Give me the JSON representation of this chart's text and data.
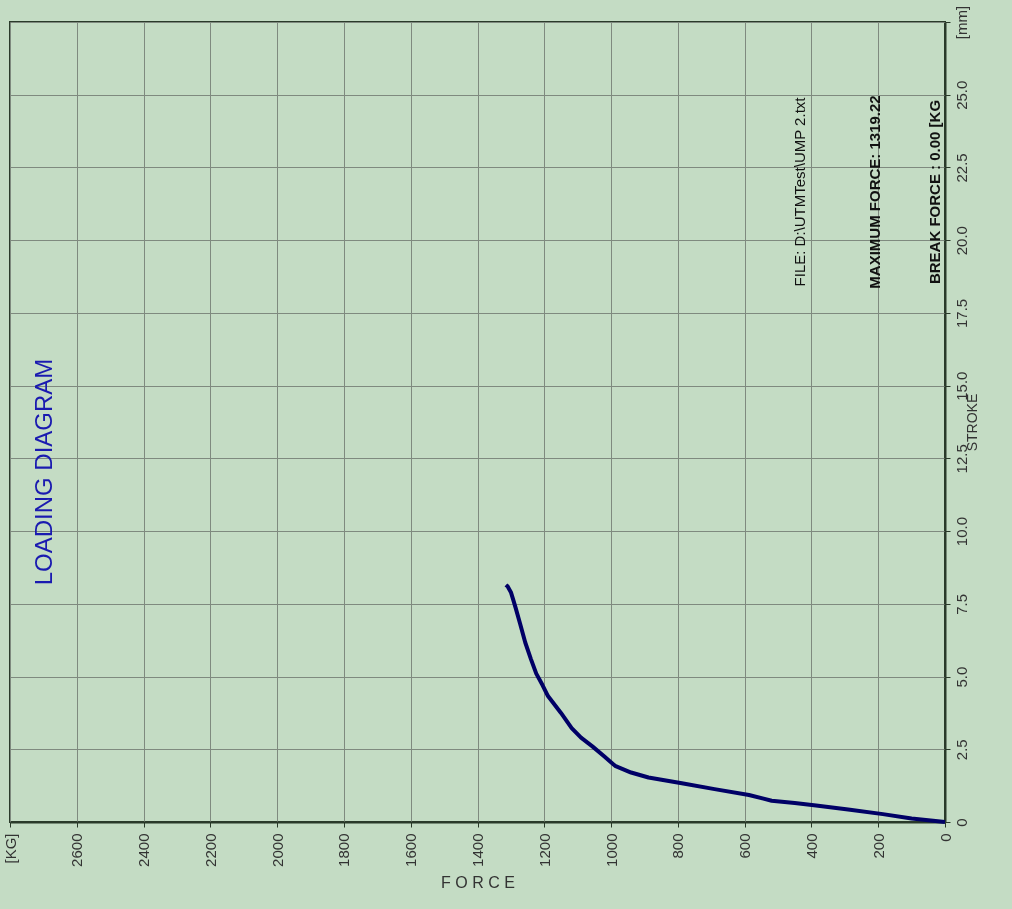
{
  "chart_data": {
    "type": "line",
    "title": "LOADING DIAGRAM",
    "xlabel": "F O R C E",
    "ylabel": "STROKE",
    "annotations": [
      "FILE: D:\\UTMTest\\UMP 2.txt",
      "MAXIMUM FORCE: 1319.22",
      "BREAK FORCE     : 0.00 [KG"
    ],
    "series": [
      {
        "color": "#000066",
        "x": [
          0,
          100,
          186,
          290,
          386,
          450,
          519,
          587,
          690,
          788,
          888,
          940,
          988,
          1020,
          1056,
          1090,
          1118,
          1150,
          1189,
          1205,
          1224,
          1240,
          1257,
          1272,
          1286,
          1292,
          1300,
          1310,
          1315
        ],
        "values": [
          0,
          0.12,
          0.27,
          0.43,
          0.57,
          0.65,
          0.73,
          0.93,
          1.13,
          1.33,
          1.53,
          1.7,
          1.93,
          2.25,
          2.6,
          2.9,
          3.23,
          3.75,
          4.33,
          4.7,
          5.1,
          5.6,
          6.17,
          6.8,
          7.37,
          7.6,
          7.9,
          8.1,
          8.15
        ]
      }
    ],
    "xlim": [
      2800,
      0
    ],
    "xticks": [
      {
        "value": 2800,
        "label": "[KG]"
      },
      2600,
      2400,
      2200,
      2000,
      1800,
      1600,
      1400,
      1200,
      1000,
      800,
      600,
      400,
      200,
      0
    ],
    "ylim": [
      0,
      27.5
    ],
    "yticks": [
      0,
      2.5,
      {
        "value": 5,
        "label": "5.0"
      },
      7.5,
      {
        "value": 10,
        "label": "10.0"
      },
      12.5,
      {
        "value": 15,
        "label": "15.0"
      },
      17.5,
      {
        "value": 20,
        "label": "20.0"
      },
      22.5,
      {
        "value": 25,
        "label": "25.0"
      },
      {
        "value": 27.5,
        "label": "[mm]"
      }
    ],
    "grid": true,
    "marker": "none",
    "line_style": "solid"
  }
}
